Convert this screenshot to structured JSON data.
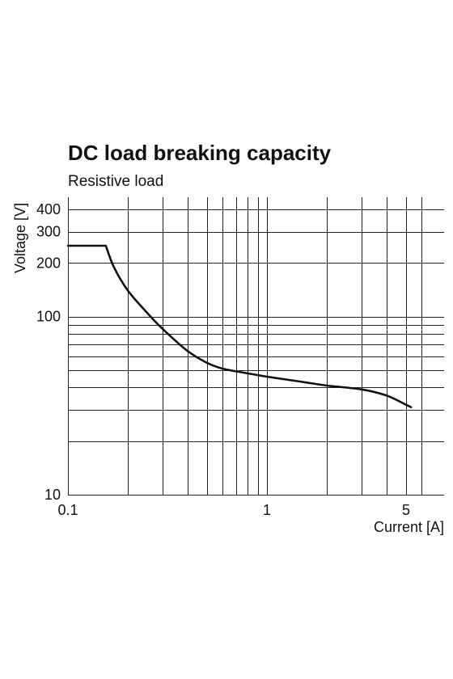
{
  "chart_data": {
    "type": "line",
    "title": "DC load breaking capacity",
    "subtitle": "Resistive load",
    "xlabel": "Current [A]",
    "ylabel": "Voltage [V]",
    "x_scale": "log",
    "y_scale": "log",
    "xlim": [
      0.1,
      6.6
    ],
    "ylim": [
      10,
      400
    ],
    "grid": true,
    "x_ticks": [
      {
        "value": 0.1,
        "label": "0.1"
      },
      {
        "value": 1,
        "label": "1"
      },
      {
        "value": 5,
        "label": "5"
      }
    ],
    "y_ticks": [
      {
        "value": 10,
        "label": "10"
      },
      {
        "value": 100,
        "label": "100"
      },
      {
        "value": 200,
        "label": "200"
      },
      {
        "value": 300,
        "label": "300"
      },
      {
        "value": 400,
        "label": "400"
      }
    ],
    "x_gridlines": [
      0.1,
      0.2,
      0.3,
      0.4,
      0.5,
      0.6,
      0.7,
      0.8,
      0.9,
      1,
      2,
      3,
      4,
      5,
      6
    ],
    "y_gridlines": [
      10,
      20,
      30,
      40,
      50,
      60,
      70,
      80,
      90,
      100,
      200,
      300,
      400
    ],
    "series": [
      {
        "x": [
          0.1,
          0.155,
          0.17,
          0.2,
          0.25,
          0.3,
          0.4,
          0.5,
          0.6,
          0.8,
          1.0,
          1.5,
          2.0,
          3.0,
          4.0,
          5.0,
          5.3
        ],
        "y": [
          250,
          250,
          190,
          140,
          105,
          85,
          64,
          55,
          51,
          48,
          46,
          43,
          41,
          39,
          36,
          32,
          31
        ]
      }
    ]
  }
}
